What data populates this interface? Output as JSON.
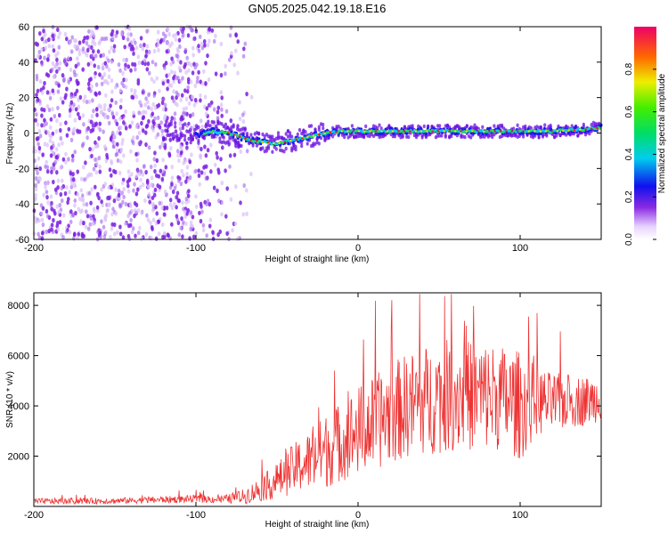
{
  "title": "GN05.2025.042.19.18.E16",
  "chart_data": [
    {
      "type": "heatmap",
      "name": "spectrogram",
      "xlabel": "Height of straight line (km)",
      "ylabel": "Frequency (Hz)",
      "xlim": [
        -200,
        150
      ],
      "ylim": [
        -60,
        60
      ],
      "xticks": [
        -200,
        -100,
        0,
        100
      ],
      "yticks": [
        -60,
        -40,
        -20,
        0,
        20,
        40,
        60
      ],
      "ridge": {
        "x": [
          -120,
          -110,
          -100,
          -90,
          -80,
          -70,
          -60,
          -50,
          -40,
          -30,
          -20,
          -10,
          0,
          20,
          40,
          60,
          80,
          100,
          120,
          140,
          150
        ],
        "frequency_hz": [
          1,
          1,
          -1,
          1,
          0,
          -3,
          -5,
          -6,
          -4,
          -2,
          0,
          1,
          1,
          1,
          1,
          1,
          1,
          1,
          1,
          2,
          3
        ]
      },
      "noise_region_x": [
        -200,
        -75
      ],
      "colorbar": {
        "label": "Normalized spectral amplitude",
        "ticks": [
          "0.0",
          "0.2",
          "0.4",
          "0.6",
          "0.8"
        ],
        "range": [
          0,
          1
        ]
      }
    },
    {
      "type": "line",
      "name": "snr",
      "xlabel": "Height of straight line (km)",
      "ylabel": "SNR (10 * v/v)",
      "xlim": [
        -200,
        150
      ],
      "ylim": [
        0,
        8500
      ],
      "xticks": [
        -200,
        -100,
        0,
        100
      ],
      "yticks": [
        2000,
        4000,
        6000,
        8000
      ],
      "color": "#ee3333",
      "envelope": {
        "x": [
          -200,
          -150,
          -100,
          -90,
          -80,
          -70,
          -60,
          -50,
          -40,
          -30,
          -20,
          -10,
          0,
          10,
          20,
          30,
          40,
          50,
          60,
          70,
          80,
          90,
          100,
          110,
          120,
          130,
          140,
          150
        ],
        "mean": [
          200,
          220,
          300,
          280,
          300,
          400,
          700,
          1000,
          1500,
          1800,
          2200,
          2600,
          3000,
          3300,
          3700,
          4000,
          4200,
          4300,
          4500,
          4400,
          4400,
          4300,
          4000,
          4200,
          4100,
          4200,
          4200,
          4300
        ],
        "spread": [
          120,
          120,
          150,
          150,
          180,
          300,
          500,
          700,
          1000,
          1200,
          1500,
          1600,
          1800,
          1900,
          2000,
          2100,
          2200,
          2200,
          2300,
          2200,
          2200,
          2100,
          2200,
          1400,
          1200,
          1100,
          1000,
          900
        ]
      }
    }
  ]
}
